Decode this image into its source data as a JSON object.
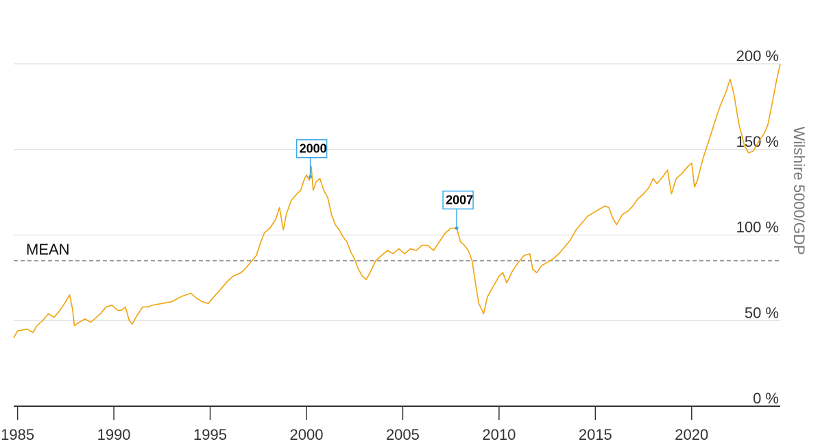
{
  "chart_data": {
    "type": "line",
    "title": "",
    "xlabel": "",
    "ylabel": "Wilshire 5000/GDP",
    "xlim": [
      1984.8,
      2024.6
    ],
    "ylim": [
      0,
      200
    ],
    "y_ticks": [
      {
        "value": 0,
        "label": "0 %"
      },
      {
        "value": 50,
        "label": "50 %"
      },
      {
        "value": 100,
        "label": "100 %"
      },
      {
        "value": 150,
        "label": "150 %"
      },
      {
        "value": 200,
        "label": "200 %"
      }
    ],
    "x_ticks": [
      {
        "value": 1985,
        "label": "1985"
      },
      {
        "value": 1990,
        "label": "1990"
      },
      {
        "value": 1995,
        "label": "1995"
      },
      {
        "value": 2000,
        "label": "2000"
      },
      {
        "value": 2005,
        "label": "2005"
      },
      {
        "value": 2010,
        "label": "2010"
      },
      {
        "value": 2015,
        "label": "2015"
      },
      {
        "value": 2020,
        "label": "2020"
      }
    ],
    "grid": true,
    "mean": {
      "label": "MEAN",
      "value": 85
    },
    "flags": [
      {
        "label": "2000",
        "x": 2000.2,
        "y": 134
      },
      {
        "label": "2007",
        "x": 2007.8,
        "y": 104
      }
    ],
    "colors": {
      "series": "#f0a30a",
      "mean": "#999999",
      "flag": "#3aa7e6",
      "grid": "#dddddd",
      "axis": "#333333"
    },
    "series": [
      {
        "points": [
          [
            1984.8,
            40
          ],
          [
            1985.0,
            44
          ],
          [
            1985.5,
            45
          ],
          [
            1985.8,
            43
          ],
          [
            1986.0,
            47
          ],
          [
            1986.3,
            50
          ],
          [
            1986.6,
            54
          ],
          [
            1986.9,
            52
          ],
          [
            1987.2,
            56
          ],
          [
            1987.5,
            61
          ],
          [
            1987.7,
            65
          ],
          [
            1987.85,
            57
          ],
          [
            1987.95,
            47
          ],
          [
            1988.2,
            49
          ],
          [
            1988.5,
            51
          ],
          [
            1988.8,
            49
          ],
          [
            1989.0,
            51
          ],
          [
            1989.3,
            54
          ],
          [
            1989.6,
            58
          ],
          [
            1989.9,
            59
          ],
          [
            1990.2,
            56
          ],
          [
            1990.4,
            56
          ],
          [
            1990.6,
            58
          ],
          [
            1990.8,
            50
          ],
          [
            1990.95,
            48
          ],
          [
            1991.2,
            53
          ],
          [
            1991.5,
            58
          ],
          [
            1991.8,
            58
          ],
          [
            1992.0,
            59
          ],
          [
            1992.5,
            60
          ],
          [
            1993.0,
            61
          ],
          [
            1993.5,
            64
          ],
          [
            1994.0,
            66
          ],
          [
            1994.3,
            63
          ],
          [
            1994.6,
            61
          ],
          [
            1994.9,
            60
          ],
          [
            1995.2,
            64
          ],
          [
            1995.6,
            69
          ],
          [
            1995.9,
            73
          ],
          [
            1996.2,
            76
          ],
          [
            1996.6,
            78
          ],
          [
            1996.8,
            80
          ],
          [
            1997.1,
            84
          ],
          [
            1997.4,
            88
          ],
          [
            1997.6,
            95
          ],
          [
            1997.8,
            101
          ],
          [
            1998.1,
            104
          ],
          [
            1998.4,
            109
          ],
          [
            1998.6,
            116
          ],
          [
            1998.8,
            103
          ],
          [
            1998.95,
            112
          ],
          [
            1999.2,
            120
          ],
          [
            1999.5,
            124
          ],
          [
            1999.7,
            126
          ],
          [
            1999.9,
            133
          ],
          [
            2000.0,
            135
          ],
          [
            2000.15,
            132
          ],
          [
            2000.25,
            140
          ],
          [
            2000.35,
            126
          ],
          [
            2000.5,
            131
          ],
          [
            2000.7,
            133
          ],
          [
            2000.9,
            126
          ],
          [
            2001.1,
            122
          ],
          [
            2001.3,
            112
          ],
          [
            2001.5,
            106
          ],
          [
            2001.7,
            103
          ],
          [
            2001.9,
            99
          ],
          [
            2002.1,
            96
          ],
          [
            2002.3,
            90
          ],
          [
            2002.5,
            86
          ],
          [
            2002.7,
            80
          ],
          [
            2002.9,
            76
          ],
          [
            2003.1,
            74
          ],
          [
            2003.3,
            78
          ],
          [
            2003.6,
            85
          ],
          [
            2003.9,
            88
          ],
          [
            2004.2,
            91
          ],
          [
            2004.5,
            89
          ],
          [
            2004.8,
            92
          ],
          [
            2005.1,
            89
          ],
          [
            2005.4,
            92
          ],
          [
            2005.7,
            91
          ],
          [
            2006.0,
            94
          ],
          [
            2006.3,
            94
          ],
          [
            2006.6,
            91
          ],
          [
            2006.9,
            96
          ],
          [
            2007.2,
            101
          ],
          [
            2007.5,
            104
          ],
          [
            2007.8,
            104
          ],
          [
            2008.0,
            96
          ],
          [
            2008.2,
            94
          ],
          [
            2008.4,
            91
          ],
          [
            2008.6,
            85
          ],
          [
            2008.8,
            70
          ],
          [
            2008.95,
            60
          ],
          [
            2009.2,
            54
          ],
          [
            2009.4,
            64
          ],
          [
            2009.7,
            70
          ],
          [
            2010.0,
            76
          ],
          [
            2010.2,
            78
          ],
          [
            2010.4,
            72
          ],
          [
            2010.7,
            79
          ],
          [
            2011.0,
            84
          ],
          [
            2011.3,
            88
          ],
          [
            2011.6,
            89
          ],
          [
            2011.75,
            80
          ],
          [
            2011.95,
            78
          ],
          [
            2012.2,
            82
          ],
          [
            2012.5,
            84
          ],
          [
            2012.8,
            86
          ],
          [
            2013.1,
            89
          ],
          [
            2013.4,
            93
          ],
          [
            2013.7,
            97
          ],
          [
            2014.0,
            103
          ],
          [
            2014.3,
            107
          ],
          [
            2014.6,
            111
          ],
          [
            2014.9,
            113
          ],
          [
            2015.2,
            115
          ],
          [
            2015.5,
            117
          ],
          [
            2015.7,
            116
          ],
          [
            2015.9,
            110
          ],
          [
            2016.1,
            106
          ],
          [
            2016.4,
            112
          ],
          [
            2016.7,
            114
          ],
          [
            2016.95,
            117
          ],
          [
            2017.2,
            121
          ],
          [
            2017.5,
            124
          ],
          [
            2017.8,
            128
          ],
          [
            2018.0,
            133
          ],
          [
            2018.2,
            130
          ],
          [
            2018.5,
            134
          ],
          [
            2018.75,
            138
          ],
          [
            2018.95,
            124
          ],
          [
            2019.2,
            133
          ],
          [
            2019.5,
            136
          ],
          [
            2019.8,
            140
          ],
          [
            2020.0,
            142
          ],
          [
            2020.15,
            128
          ],
          [
            2020.3,
            132
          ],
          [
            2020.6,
            145
          ],
          [
            2020.95,
            157
          ],
          [
            2021.2,
            166
          ],
          [
            2021.5,
            176
          ],
          [
            2021.8,
            184
          ],
          [
            2022.0,
            191
          ],
          [
            2022.2,
            182
          ],
          [
            2022.45,
            165
          ],
          [
            2022.75,
            152
          ],
          [
            2022.95,
            148
          ],
          [
            2023.2,
            149
          ],
          [
            2023.5,
            155
          ],
          [
            2023.75,
            159
          ],
          [
            2023.95,
            164
          ],
          [
            2024.2,
            178
          ],
          [
            2024.4,
            190
          ],
          [
            2024.6,
            200
          ]
        ]
      }
    ]
  }
}
